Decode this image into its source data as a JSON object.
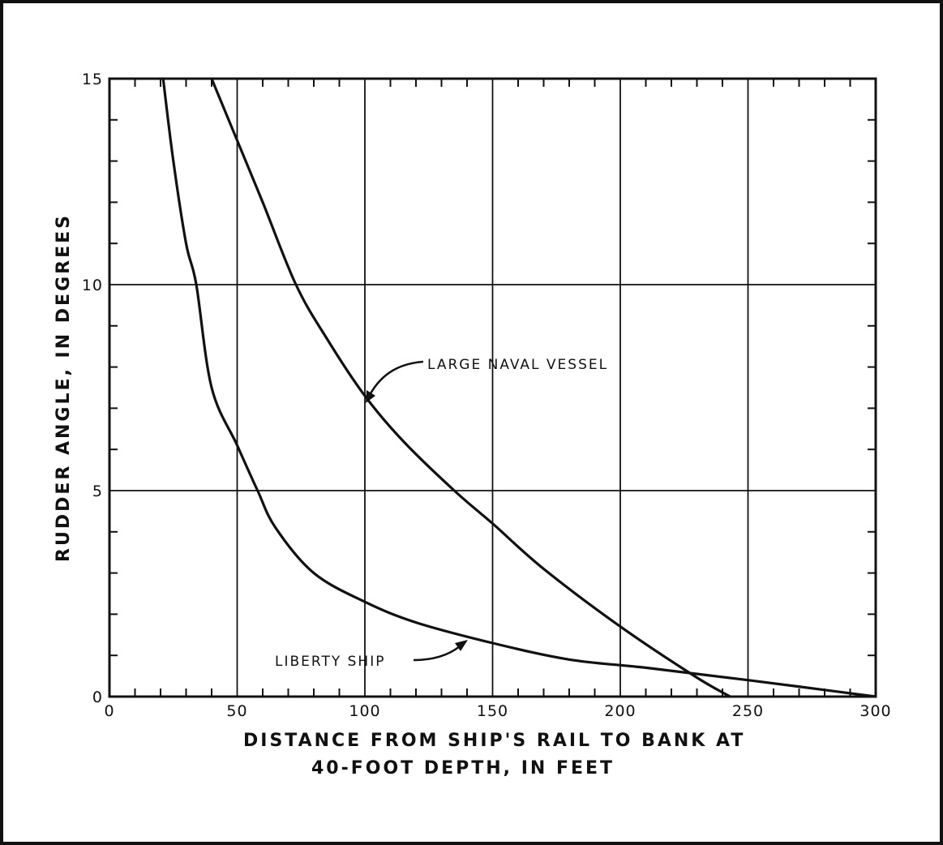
{
  "chart_data": {
    "type": "line",
    "title": "",
    "xlabel_lines": [
      "DISTANCE FROM SHIP'S RAIL TO BANK AT",
      "40-FOOT DEPTH, IN FEET"
    ],
    "ylabel": "RUDDER ANGLE, IN DEGREES",
    "xlim": [
      0,
      300
    ],
    "ylim": [
      0,
      15
    ],
    "x_ticks": [
      0,
      50,
      100,
      150,
      200,
      250,
      300
    ],
    "x_tick_labels": [
      "0",
      "50",
      "100",
      "150",
      "200",
      "250",
      "300"
    ],
    "y_ticks": [
      0,
      5,
      10,
      15
    ],
    "y_tick_labels": [
      "0",
      "5",
      "10",
      "15"
    ],
    "grid": true,
    "series": [
      {
        "name": "LARGE NAVAL VESSEL",
        "x": [
          40,
          50,
          60,
          73,
          85,
          100,
          115,
          135,
          150,
          170,
          200,
          229,
          243
        ],
        "y": [
          15,
          13.5,
          12,
          10,
          8.7,
          7.3,
          6.2,
          5.0,
          4.2,
          3.1,
          1.7,
          0.5,
          0
        ]
      },
      {
        "name": "LIBERTY SHIP",
        "x": [
          21,
          25,
          30,
          34,
          40,
          50,
          58,
          65,
          80,
          100,
          120,
          150,
          180,
          210,
          250,
          300
        ],
        "y": [
          15,
          13,
          11,
          10,
          7.5,
          6.1,
          5.0,
          4.1,
          3.0,
          2.3,
          1.8,
          1.3,
          0.9,
          0.7,
          0.4,
          0
        ]
      }
    ],
    "annotations": [
      "LARGE NAVAL VESSEL",
      "LIBERTY SHIP"
    ]
  }
}
